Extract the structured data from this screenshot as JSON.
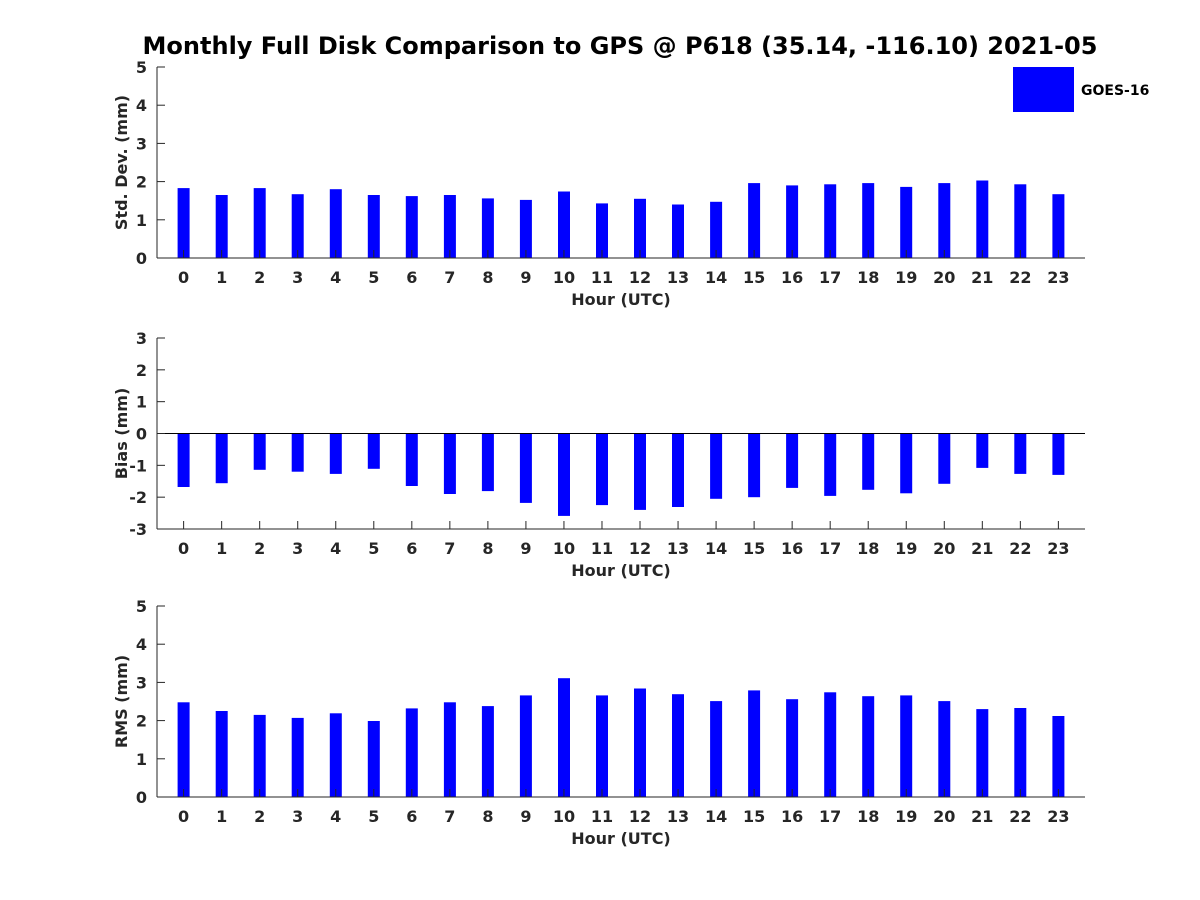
{
  "title": "Monthly Full Disk Comparison to GPS @ P618 (35.14, -116.10) 2021-05",
  "legend": {
    "label": "GOES-16",
    "color": "#0000FF",
    "placement": "top-right"
  },
  "chart_data": [
    {
      "type": "bar",
      "xlabel": "Hour (UTC)",
      "ylabel": "Std. Dev. (mm)",
      "ylim": [
        0,
        5
      ],
      "yticks": [
        0,
        1,
        2,
        3,
        4,
        5
      ],
      "categories": [
        "0",
        "1",
        "2",
        "3",
        "4",
        "5",
        "6",
        "7",
        "8",
        "9",
        "10",
        "11",
        "12",
        "13",
        "14",
        "15",
        "16",
        "17",
        "18",
        "19",
        "20",
        "21",
        "22",
        "23"
      ],
      "series": [
        {
          "name": "GOES-16",
          "color": "#0000FF",
          "values": [
            1.83,
            1.65,
            1.83,
            1.67,
            1.8,
            1.65,
            1.62,
            1.65,
            1.56,
            1.52,
            1.74,
            1.43,
            1.55,
            1.4,
            1.47,
            1.96,
            1.9,
            1.93,
            1.96,
            1.86,
            1.96,
            2.03,
            1.93,
            1.67
          ]
        }
      ],
      "grid": false
    },
    {
      "type": "bar",
      "xlabel": "Hour (UTC)",
      "ylabel": "Bias (mm)",
      "ylim": [
        -3,
        3
      ],
      "yticks": [
        -3,
        -2,
        -1,
        0,
        1,
        2,
        3
      ],
      "categories": [
        "0",
        "1",
        "2",
        "3",
        "4",
        "5",
        "6",
        "7",
        "8",
        "9",
        "10",
        "11",
        "12",
        "13",
        "14",
        "15",
        "16",
        "17",
        "18",
        "19",
        "20",
        "21",
        "22",
        "23"
      ],
      "series": [
        {
          "name": "GOES-16",
          "color": "#0000FF",
          "values": [
            -1.68,
            -1.56,
            -1.14,
            -1.2,
            -1.27,
            -1.11,
            -1.65,
            -1.9,
            -1.81,
            -2.18,
            -2.59,
            -2.25,
            -2.4,
            -2.31,
            -2.05,
            -2.0,
            -1.71,
            -1.96,
            -1.77,
            -1.88,
            -1.58,
            -1.08,
            -1.27,
            -1.3
          ]
        }
      ],
      "grid": false
    },
    {
      "type": "bar",
      "xlabel": "Hour (UTC)",
      "ylabel": "RMS (mm)",
      "ylim": [
        0,
        5
      ],
      "yticks": [
        0,
        1,
        2,
        3,
        4,
        5
      ],
      "categories": [
        "0",
        "1",
        "2",
        "3",
        "4",
        "5",
        "6",
        "7",
        "8",
        "9",
        "10",
        "11",
        "12",
        "13",
        "14",
        "15",
        "16",
        "17",
        "18",
        "19",
        "20",
        "21",
        "22",
        "23"
      ],
      "series": [
        {
          "name": "GOES-16",
          "color": "#0000FF",
          "values": [
            2.48,
            2.25,
            2.15,
            2.07,
            2.19,
            1.99,
            2.32,
            2.48,
            2.38,
            2.66,
            3.11,
            2.66,
            2.84,
            2.69,
            2.51,
            2.79,
            2.56,
            2.74,
            2.64,
            2.66,
            2.51,
            2.3,
            2.33,
            2.12
          ]
        }
      ],
      "grid": false
    }
  ]
}
